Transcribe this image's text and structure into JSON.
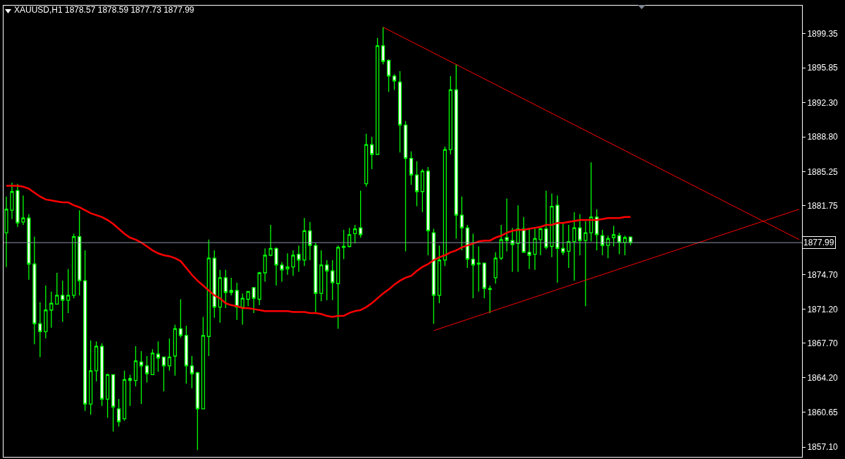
{
  "chart_data": {
    "type": "candlestick",
    "title": "XAUUSD,H1 1878.57 1878.59 1877.73 1877.99",
    "color": "#00ff00",
    "categories": [
      null,
      null,
      null,
      null,
      null,
      null,
      null,
      null,
      null,
      null,
      null,
      null,
      null,
      null,
      null,
      null,
      null,
      null,
      null,
      null,
      null,
      null,
      null,
      null,
      null,
      null,
      null,
      null,
      null,
      null,
      null,
      null,
      null,
      null,
      null,
      null,
      null,
      null,
      null,
      null,
      null,
      null,
      null,
      null,
      null,
      null,
      null,
      null,
      null,
      null,
      null,
      null,
      null,
      null,
      null,
      null,
      null,
      null,
      null,
      null,
      null,
      null,
      null,
      null,
      null,
      null,
      null,
      null,
      null,
      null,
      null,
      null,
      null,
      null,
      null,
      null,
      null,
      null,
      null,
      null,
      null,
      null,
      null,
      null,
      null,
      null,
      null,
      null,
      null,
      null,
      null,
      null,
      null,
      null,
      null,
      null,
      null,
      null,
      null,
      null,
      null,
      null,
      null,
      null,
      null,
      null,
      null,
      null,
      null,
      null,
      null,
      null,
      null,
      null,
      null,
      null,
      null,
      null,
      null,
      null,
      null,
      null,
      null,
      null,
      null,
      null,
      null,
      null,
      null,
      null,
      null,
      null,
      null,
      null,
      null,
      null,
      null,
      null,
      null,
      null,
      null,
      null
    ],
    "ohlc": [
      [
        1879.0,
        1882.7,
        1875.5,
        1881.4
      ],
      [
        1881.3,
        1884.1,
        1880.4,
        1883.2
      ],
      [
        1883.3,
        1884.0,
        1879.6,
        1880.0
      ],
      [
        1880.1,
        1882.8,
        1879.8,
        1880.5
      ],
      [
        1880.5,
        1880.9,
        1874.2,
        1875.8
      ],
      [
        1875.8,
        1878.6,
        1867.6,
        1869.7
      ],
      [
        1869.7,
        1871.9,
        1866.3,
        1868.9
      ],
      [
        1868.9,
        1873.6,
        1868.2,
        1871.1
      ],
      [
        1871.1,
        1873.0,
        1869.3,
        1871.8
      ],
      [
        1871.7,
        1874.9,
        1871.7,
        1872.6
      ],
      [
        1872.6,
        1874.1,
        1869.9,
        1872.1
      ],
      [
        1872.1,
        1875.3,
        1870.8,
        1872.6
      ],
      [
        1872.6,
        1878.9,
        1872.3,
        1878.6
      ],
      [
        1878.6,
        1881.3,
        1872.6,
        1874.1
      ],
      [
        1874.1,
        1877.2,
        1860.8,
        1861.5
      ],
      [
        1861.5,
        1868.0,
        1860.4,
        1864.9
      ],
      [
        1864.9,
        1867.9,
        1863.8,
        1867.4
      ],
      [
        1867.4,
        1867.7,
        1861.3,
        1862.0
      ],
      [
        1862.0,
        1864.6,
        1860.1,
        1864.5
      ],
      [
        1864.5,
        1864.5,
        1858.7,
        1861.2
      ],
      [
        1861.0,
        1862.0,
        1859.2,
        1859.7
      ],
      [
        1860.0,
        1864.9,
        1859.8,
        1864.0
      ],
      [
        1864.1,
        1864.5,
        1861.3,
        1863.9
      ],
      [
        1863.9,
        1867.4,
        1863.3,
        1865.9
      ],
      [
        1865.8,
        1866.9,
        1861.5,
        1865.4
      ],
      [
        1865.4,
        1866.4,
        1863.7,
        1864.6
      ],
      [
        1864.5,
        1867.1,
        1864.5,
        1866.7
      ],
      [
        1866.6,
        1867.9,
        1864.8,
        1866.2
      ],
      [
        1866.3,
        1866.3,
        1862.8,
        1865.4
      ],
      [
        1865.4,
        1868.2,
        1864.9,
        1866.3
      ],
      [
        1866.4,
        1869.6,
        1864.4,
        1869.2
      ],
      [
        1869.2,
        1872.2,
        1868.3,
        1868.5
      ],
      [
        1868.5,
        1869.5,
        1863.6,
        1865.4
      ],
      [
        1865.4,
        1866.4,
        1863.1,
        1864.6
      ],
      [
        1864.7,
        1864.8,
        1856.8,
        1861.0
      ],
      [
        1861.0,
        1870.4,
        1861.0,
        1868.5
      ],
      [
        1868.4,
        1878.3,
        1866.4,
        1876.4
      ],
      [
        1876.4,
        1877.2,
        1870.3,
        1871.4
      ],
      [
        1871.4,
        1875.2,
        1869.8,
        1874.4
      ],
      [
        1874.4,
        1875.2,
        1871.3,
        1872.9
      ],
      [
        1873.1,
        1874.4,
        1872.6,
        1872.9
      ],
      [
        1873.1,
        1873.9,
        1870.1,
        1871.4
      ],
      [
        1871.4,
        1872.8,
        1869.6,
        1872.3
      ],
      [
        1872.2,
        1873.0,
        1871.5,
        1873.0
      ],
      [
        1873.4,
        1873.4,
        1870.8,
        1872.3
      ],
      [
        1872.2,
        1875.0,
        1871.6,
        1874.9
      ],
      [
        1874.9,
        1877.4,
        1874.0,
        1876.7
      ],
      [
        1876.7,
        1879.8,
        1876.6,
        1877.4
      ],
      [
        1877.4,
        1877.5,
        1873.6,
        1875.7
      ],
      [
        1875.7,
        1876.0,
        1874.0,
        1875.2
      ],
      [
        1875.3,
        1876.9,
        1874.7,
        1875.5
      ],
      [
        1875.5,
        1877.2,
        1874.6,
        1876.7
      ],
      [
        1876.8,
        1877.7,
        1875.0,
        1876.2
      ],
      [
        1876.2,
        1880.5,
        1875.6,
        1879.2
      ],
      [
        1879.2,
        1880.1,
        1876.2,
        1877.7
      ],
      [
        1877.7,
        1878.0,
        1870.9,
        1872.8
      ],
      [
        1872.8,
        1877.2,
        1872.0,
        1875.7
      ],
      [
        1875.7,
        1876.2,
        1872.1,
        1875.1
      ],
      [
        1875.1,
        1876.2,
        1872.1,
        1873.9
      ],
      [
        1873.8,
        1877.7,
        1869.2,
        1877.5
      ],
      [
        1877.5,
        1879.3,
        1876.3,
        1877.6
      ],
      [
        1877.6,
        1879.5,
        1877.5,
        1878.8
      ],
      [
        1878.9,
        1879.8,
        1877.9,
        1879.4
      ],
      [
        1879.5,
        1883.3,
        1878.5,
        1878.8
      ],
      [
        1884.0,
        1889.1,
        1883.7,
        1888.0
      ],
      [
        1888.0,
        1888.8,
        1885.5,
        1887.0
      ],
      [
        1887.0,
        1898.9,
        1887.0,
        1898.1
      ],
      [
        1898.1,
        1900.0,
        1896.2,
        1896.5
      ],
      [
        1896.6,
        1896.7,
        1893.4,
        1895.0
      ],
      [
        1895.0,
        1895.2,
        1893.6,
        1894.5
      ],
      [
        1894.4,
        1895.5,
        1887.2,
        1890.0
      ],
      [
        1890.0,
        1890.4,
        1877.1,
        1886.6
      ],
      [
        1886.6,
        1887.3,
        1883.9,
        1884.9
      ],
      [
        1884.9,
        1886.3,
        1881.7,
        1883.2
      ],
      [
        1883.2,
        1885.5,
        1881.1,
        1885.3
      ],
      [
        1885.3,
        1885.7,
        1876.7,
        1879.2
      ],
      [
        1879.0,
        1879.4,
        1869.7,
        1872.6
      ],
      [
        1872.6,
        1877.7,
        1871.8,
        1876.2
      ],
      [
        1876.2,
        1887.8,
        1875.6,
        1887.5
      ],
      [
        1887.5,
        1895.0,
        1887.0,
        1893.6
      ],
      [
        1893.6,
        1896.2,
        1878.4,
        1880.8
      ],
      [
        1880.8,
        1882.7,
        1877.2,
        1879.5
      ],
      [
        1879.5,
        1879.8,
        1875.4,
        1876.3
      ],
      [
        1876.3,
        1878.9,
        1872.3,
        1875.7
      ],
      [
        1875.9,
        1877.6,
        1873.0,
        1875.8
      ],
      [
        1875.9,
        1875.9,
        1872.3,
        1873.3
      ],
      [
        1873.2,
        1873.6,
        1870.8,
        1873.3
      ],
      [
        1874.4,
        1877.0,
        1873.8,
        1876.4
      ],
      [
        1876.4,
        1879.8,
        1876.2,
        1878.3
      ],
      [
        1878.5,
        1882.5,
        1877.1,
        1878.2
      ],
      [
        1878.2,
        1879.5,
        1875.0,
        1877.8
      ],
      [
        1877.9,
        1881.8,
        1875.0,
        1879.4
      ],
      [
        1879.4,
        1880.6,
        1877.0,
        1877.0
      ],
      [
        1877.0,
        1879.5,
        1875.3,
        1876.7
      ],
      [
        1876.8,
        1879.5,
        1875.2,
        1878.4
      ],
      [
        1878.3,
        1879.5,
        1876.7,
        1879.4
      ],
      [
        1879.4,
        1883.3,
        1877.3,
        1877.5
      ],
      [
        1877.6,
        1883.0,
        1876.5,
        1881.7
      ],
      [
        1881.8,
        1882.8,
        1873.9,
        1877.4
      ],
      [
        1877.4,
        1880.0,
        1876.7,
        1877.0
      ],
      [
        1877.1,
        1879.8,
        1875.4,
        1878.1
      ],
      [
        1878.1,
        1881.1,
        1874.1,
        1879.5
      ],
      [
        1879.5,
        1880.9,
        1876.7,
        1878.2
      ],
      [
        1878.2,
        1880.2,
        1871.5,
        1879.0
      ],
      [
        1879.0,
        1886.2,
        1878.1,
        1880.6
      ],
      [
        1880.6,
        1881.4,
        1877.2,
        1878.8
      ],
      [
        1878.7,
        1879.3,
        1876.7,
        1877.7
      ],
      [
        1877.7,
        1878.7,
        1876.4,
        1878.4
      ],
      [
        1878.5,
        1879.7,
        1877.6,
        1878.8
      ],
      [
        1878.7,
        1879.0,
        1876.8,
        1878.0
      ],
      [
        1878.0,
        1878.7,
        1876.7,
        1878.5
      ],
      [
        1878.57,
        1878.59,
        1877.73,
        1877.99
      ],
      null,
      null,
      null,
      null,
      null,
      null,
      null,
      null,
      null,
      null,
      null,
      null,
      null,
      null,
      null,
      null,
      null,
      null,
      null,
      null,
      null,
      null,
      null,
      null,
      null,
      null,
      null,
      null,
      null,
      null
    ],
    "series": [
      {
        "type": "line",
        "color": "#ff0000",
        "values": [
          1883.8,
          1883.8,
          1883.8,
          1883.7,
          1883.5,
          1883.1,
          1882.7,
          1882.4,
          1882.3,
          1882.2,
          1882.1,
          1882.1,
          1881.8,
          1881.6,
          1881.3,
          1881.0,
          1880.8,
          1880.6,
          1880.3,
          1879.9,
          1879.4,
          1878.9,
          1878.5,
          1878.3,
          1878.0,
          1877.6,
          1877.2,
          1876.9,
          1876.7,
          1876.6,
          1876.4,
          1876.1,
          1875.4,
          1874.7,
          1874.1,
          1873.6,
          1873.1,
          1872.6,
          1872.3,
          1871.8,
          1871.6,
          1871.5,
          1871.3,
          1871.3,
          1871.2,
          1871.1,
          1871.0,
          1871.0,
          1871.0,
          1871.0,
          1871.0,
          1870.9,
          1870.9,
          1870.9,
          1870.8,
          1870.8,
          1870.7,
          1870.5,
          1870.4,
          1870.5,
          1870.5,
          1870.8,
          1871.0,
          1871.1,
          1871.4,
          1871.8,
          1872.3,
          1872.8,
          1873.2,
          1873.7,
          1874.1,
          1874.4,
          1874.6,
          1875.1,
          1875.5,
          1875.8,
          1876.2,
          1876.5,
          1876.7,
          1877.0,
          1877.2,
          1877.5,
          1877.7,
          1877.9,
          1878.1,
          1878.2,
          1878.2,
          1878.5,
          1878.7,
          1879.0,
          1879.2,
          1879.3,
          1879.3,
          1879.4,
          1879.5,
          1879.6,
          1879.8,
          1879.8,
          1880.0,
          1880.0,
          1880.1,
          1880.2,
          1880.3,
          1880.3,
          1880.3,
          1880.3,
          1880.4,
          1880.5,
          1880.5,
          1880.5,
          1880.6,
          1880.6,
          null,
          null,
          null,
          null,
          null,
          null,
          null,
          null,
          null,
          null,
          null,
          null,
          null,
          null,
          null,
          null,
          null,
          null,
          null,
          null,
          null,
          null,
          null,
          null,
          null,
          null,
          null,
          null,
          null,
          null
        ]
      },
      {
        "type": "line",
        "color": "#ff0000",
        "values": [
          null,
          null,
          null,
          null,
          null,
          null,
          null,
          null,
          null,
          null,
          null,
          null,
          null,
          null,
          null,
          null,
          null,
          null,
          null,
          null,
          null,
          null,
          null,
          null,
          null,
          null,
          null,
          null,
          null,
          null,
          null,
          null,
          null,
          null,
          null,
          null,
          null,
          null,
          null,
          null,
          null,
          null,
          null,
          null,
          null,
          null,
          null,
          null,
          null,
          null,
          null,
          null,
          null,
          null,
          null,
          null,
          null,
          null,
          null,
          null,
          null,
          null,
          null,
          null,
          null,
          null,
          null,
          1900.0,
          null,
          null,
          null,
          null,
          null,
          null,
          null,
          null,
          null,
          null,
          null,
          null,
          null,
          null,
          null,
          null,
          null,
          null,
          null,
          null,
          null,
          null,
          null,
          null,
          null,
          null,
          null,
          null,
          null,
          null,
          null,
          null,
          null,
          null,
          null,
          null,
          null,
          null,
          null,
          null,
          null,
          null,
          null,
          null,
          null,
          null,
          null,
          null,
          null,
          null,
          null,
          null,
          null,
          null,
          null,
          null,
          null,
          null,
          null,
          null,
          null,
          null,
          null,
          null,
          null,
          null,
          null,
          null,
          null,
          null,
          null,
          null,
          null,
          1878.3
        ]
      },
      {
        "type": "line",
        "color": "#ff0000",
        "values": [
          null,
          null,
          null,
          null,
          null,
          null,
          null,
          null,
          null,
          null,
          null,
          null,
          null,
          null,
          null,
          null,
          null,
          null,
          null,
          null,
          null,
          null,
          null,
          null,
          null,
          null,
          null,
          null,
          null,
          null,
          null,
          null,
          null,
          null,
          null,
          null,
          null,
          null,
          null,
          null,
          null,
          null,
          null,
          null,
          null,
          null,
          null,
          null,
          null,
          null,
          null,
          null,
          null,
          null,
          null,
          null,
          null,
          null,
          null,
          null,
          null,
          null,
          null,
          null,
          null,
          null,
          null,
          null,
          null,
          null,
          null,
          null,
          null,
          null,
          null,
          null,
          1869.0,
          null,
          null,
          null,
          null,
          null,
          null,
          null,
          null,
          null,
          null,
          null,
          null,
          null,
          null,
          null,
          null,
          null,
          null,
          null,
          null,
          null,
          null,
          null,
          null,
          null,
          null,
          null,
          null,
          null,
          null,
          null,
          null,
          null,
          null,
          null,
          null,
          null,
          null,
          null,
          null,
          null,
          null,
          null,
          null,
          null,
          null,
          null,
          null,
          null,
          null,
          null,
          null,
          null,
          null,
          null,
          null,
          null,
          null,
          null,
          null,
          null,
          null,
          null,
          null,
          1881.4
        ]
      }
    ],
    "ylim": [
      1856.1,
      1902.2
    ],
    "yticks": [
      {
        "value": 1857.1,
        "label": "1857.10"
      },
      {
        "value": 1860.65,
        "label": "1860.65"
      },
      {
        "value": 1864.2,
        "label": "1864.20"
      },
      {
        "value": 1867.7,
        "label": "1867.70"
      },
      {
        "value": 1871.2,
        "label": "1871.20"
      },
      {
        "value": 1874.7,
        "label": "1874.70"
      },
      {
        "value": 1881.75,
        "label": "1881.75"
      },
      {
        "value": 1885.25,
        "label": "1885.25"
      },
      {
        "value": 1888.8,
        "label": "1888.80"
      },
      {
        "value": 1892.3,
        "label": "1892.30"
      },
      {
        "value": 1895.85,
        "label": "1895.85"
      },
      {
        "value": 1899.35,
        "label": "1899.35"
      }
    ],
    "tick_labels": "y",
    "ref_lines": [
      {
        "axis": "y",
        "value": 1877.99,
        "label": "1877.99",
        "color": "#8a94a6"
      }
    ]
  }
}
